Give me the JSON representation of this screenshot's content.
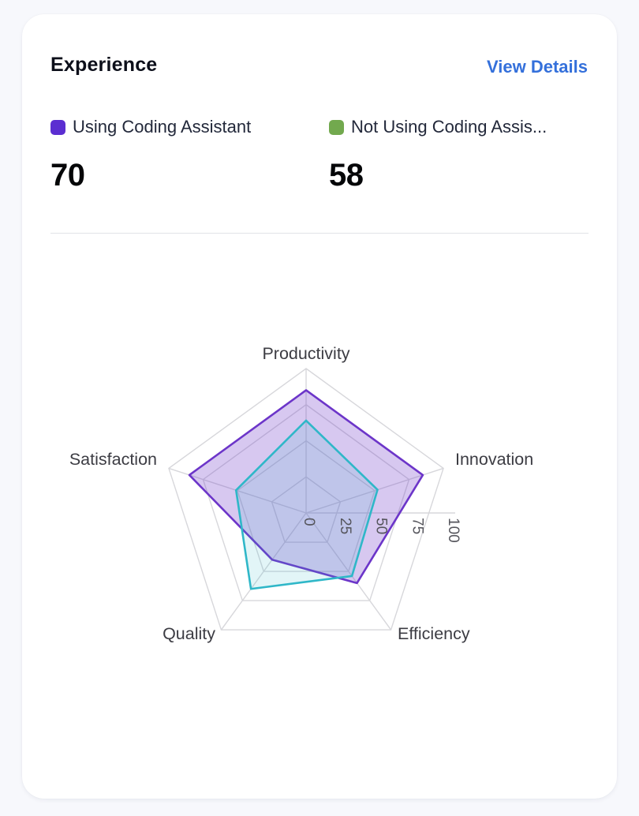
{
  "card": {
    "title": "Experience",
    "action_label": "View Details"
  },
  "legend": [
    {
      "label": "Using Coding Assistant",
      "value": "70",
      "color": "#5B2ED1"
    },
    {
      "label": "Not Using Coding Assis...",
      "value": "58",
      "color": "#72A94E"
    }
  ],
  "chart_data": {
    "type": "radar",
    "categories": [
      "Productivity",
      "Innovation",
      "Efficiency",
      "Quality",
      "Satisfaction"
    ],
    "series": [
      {
        "name": "Using Coding Assistant",
        "values": [
          85,
          85,
          60,
          40,
          85
        ],
        "stroke": "#6C35C9",
        "fill": "rgba(108,53,201,0.27)"
      },
      {
        "name": "Not Using Coding Assis...",
        "values": [
          64,
          52,
          54,
          65,
          51
        ],
        "stroke": "#2FB7C8",
        "fill": "rgba(47,183,200,0.14)"
      }
    ],
    "radial_ticks": [
      0,
      25,
      50,
      75,
      100
    ],
    "rlim": [
      0,
      100
    ],
    "grid": true,
    "grid_color": "#d7d7db",
    "legend_position": "top-outside"
  }
}
